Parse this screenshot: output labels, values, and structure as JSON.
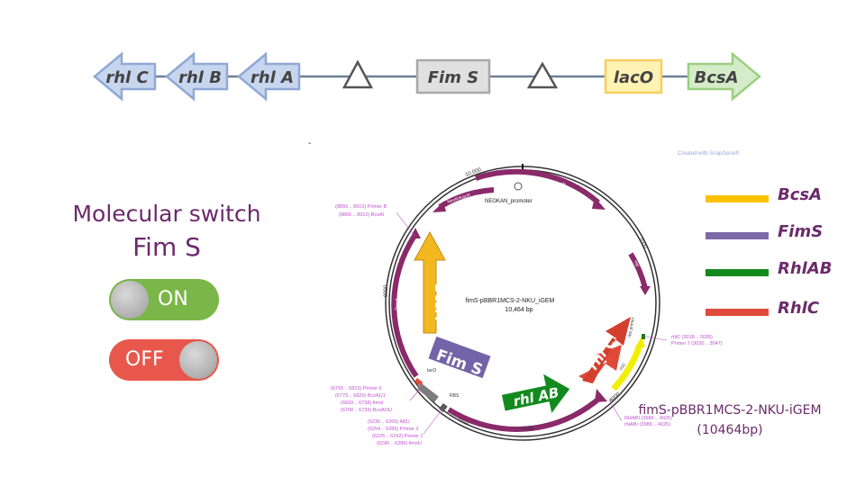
{
  "construct": {
    "genes": [
      "rhl C",
      "rhl B",
      "rhl A"
    ],
    "fims_label": "Fim S",
    "laco_label": "lacO",
    "bcsa_label": "BcsA"
  },
  "switch": {
    "title_line1": "Molecular switch",
    "title_line2": "Fim S",
    "on_label": "ON",
    "off_label": "OFF"
  },
  "legend": [
    {
      "label": "BcsA",
      "color": "#ffc000"
    },
    {
      "label": "FimS",
      "color": "#7b6aa7"
    },
    {
      "label": "RhlAB",
      "color": "#138a1e"
    },
    {
      "label": "RhlC",
      "color": "#e04a3a"
    }
  ],
  "map": {
    "name": "fimS-pBBR1MCS-2-NKU_iGEM",
    "size": "10,464 bp",
    "tick_10000": "10,000",
    "tick_2000": "2000",
    "tick_4000": "4000",
    "tick_6000": "6000",
    "tick_8000": "8000",
    "features": {
      "mob": "mob",
      "neokan": "NeoR/KanR",
      "neokan_promoter": "NEOKAN_promoter",
      "rep": "rep",
      "bcsa": "BcsA",
      "rhlab": "rhlAB",
      "rhlc": "rhlC",
      "laco": "lacO",
      "rbs": "RBS",
      "fims": "FimS",
      "primer_a": "rbs primer"
    },
    "overlays": {
      "bcsa": "BcsA",
      "fims": "Fim S",
      "rhlab": "rhl AB",
      "rhlc": "rhl C"
    },
    "annotations": {
      "primer_b": "(8893 .. 8910)  Primer B",
      "bcsa_i": "(8866 .. 8910)  BcsAI",
      "rhlc_primer": "rhlC  (3018 .. 3035)",
      "primer7": "Primer 7  (3030 .. 3047)",
      "rhlab_anno": "RhlABI  (3986 .. 4025)",
      "rhlab_anno2": "rhlABr  (3986 .. 4025)",
      "primer6": "(6793 .. 6815)  Primer 6",
      "bcsau1": "(6773 .. 6820)  BcsAU1",
      "fimsi": "(6693 .. 6738)  fimsI",
      "bcsaou": "(6708 .. 6739)  BcsAOU",
      "abu": "(6236 .. 6266)  ABU",
      "primer2": "(6254 .. 6286)  Primer 2",
      "primer1": "(6225 .. 6242)  Primer 1",
      "fimsu": "(6240 .. 6286)  fimsU"
    },
    "watermark": "Created with SnapGene®",
    "dash": "-"
  },
  "caption": {
    "line1": "fimS-pBBR1MCS-2-NKU-iGEM",
    "line2": "(10464bp)"
  }
}
